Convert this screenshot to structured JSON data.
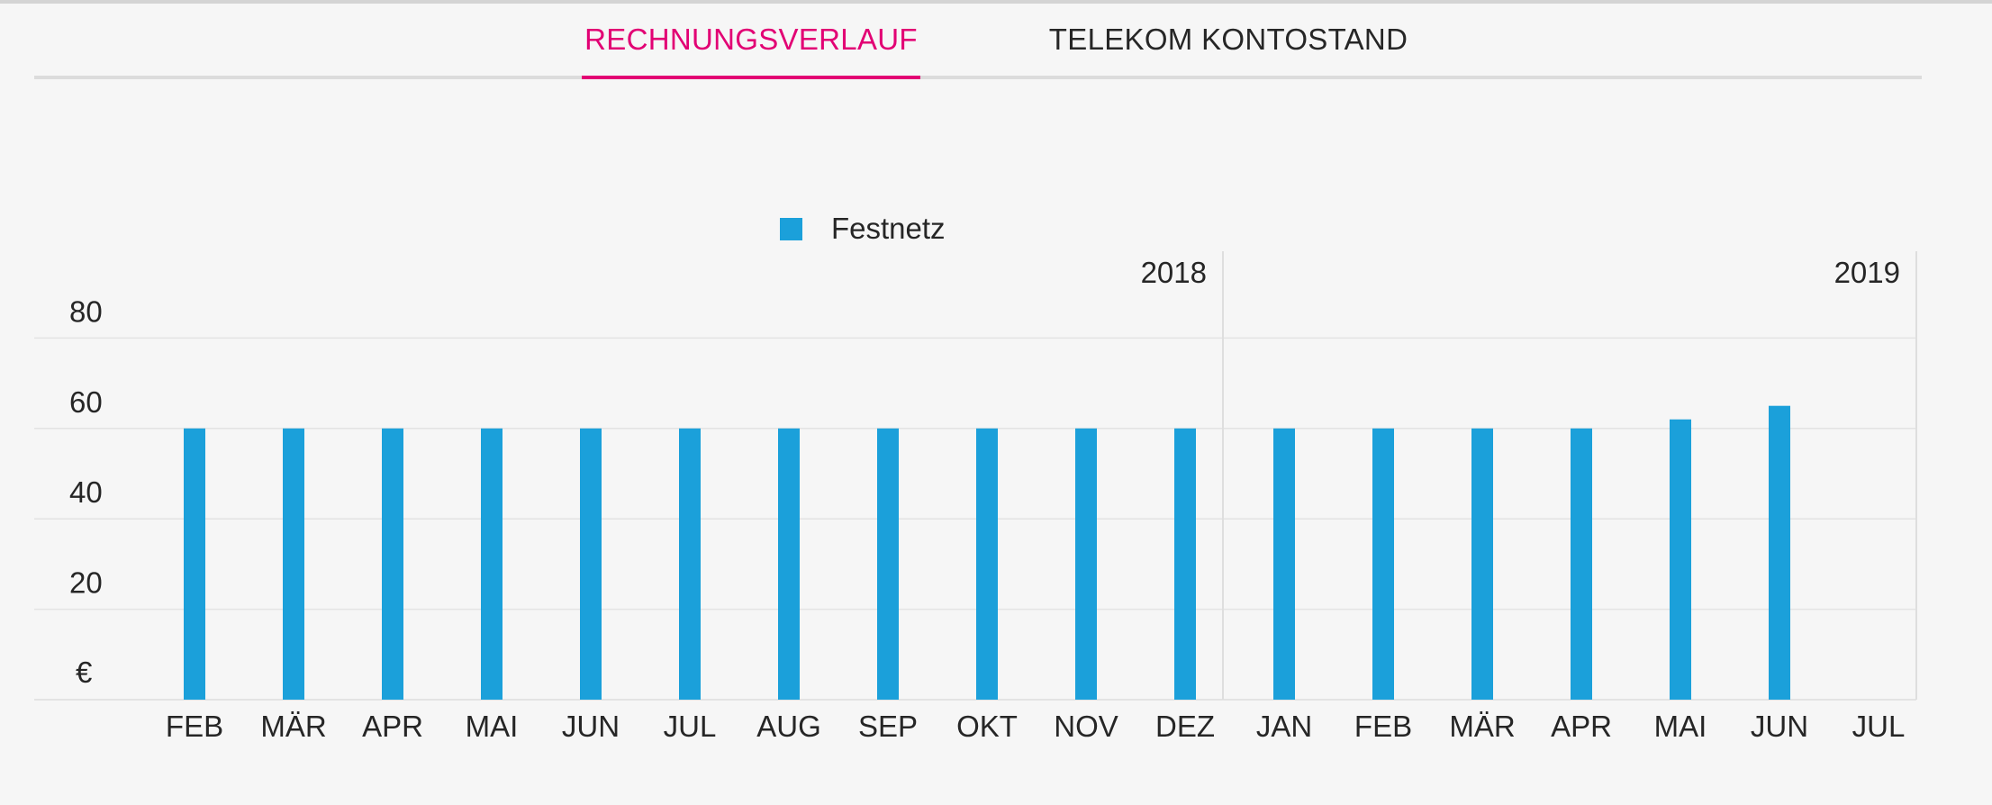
{
  "tabs": [
    {
      "label": "RECHNUNGSVERLAUF",
      "active": true
    },
    {
      "label": "TELEKOM KONTOSTAND",
      "active": false
    }
  ],
  "colors": {
    "accent": "#e20074",
    "bar": "#1ba0da",
    "text": "#262626",
    "grid": "#e3e3e3",
    "background": "#f6f6f6"
  },
  "chart_data": {
    "type": "bar",
    "title": "",
    "xlabel": "",
    "ylabel": "€",
    "ylim": [
      0,
      80
    ],
    "yticks": [
      20,
      40,
      60,
      80
    ],
    "grid": true,
    "legend_position": "top-center",
    "categories": [
      "FEB",
      "MÄR",
      "APR",
      "MAI",
      "JUN",
      "JUL",
      "AUG",
      "SEP",
      "OKT",
      "NOV",
      "DEZ",
      "JAN",
      "FEB",
      "MÄR",
      "APR",
      "MAI",
      "JUN",
      "JUL"
    ],
    "year_groups": [
      {
        "label": "2018",
        "count": 11
      },
      {
        "label": "2019",
        "count": 7
      }
    ],
    "series": [
      {
        "name": "Festnetz",
        "values": [
          60,
          60,
          60,
          60,
          60,
          60,
          60,
          60,
          60,
          60,
          60,
          60,
          60,
          60,
          60,
          62,
          65,
          null
        ]
      }
    ]
  }
}
